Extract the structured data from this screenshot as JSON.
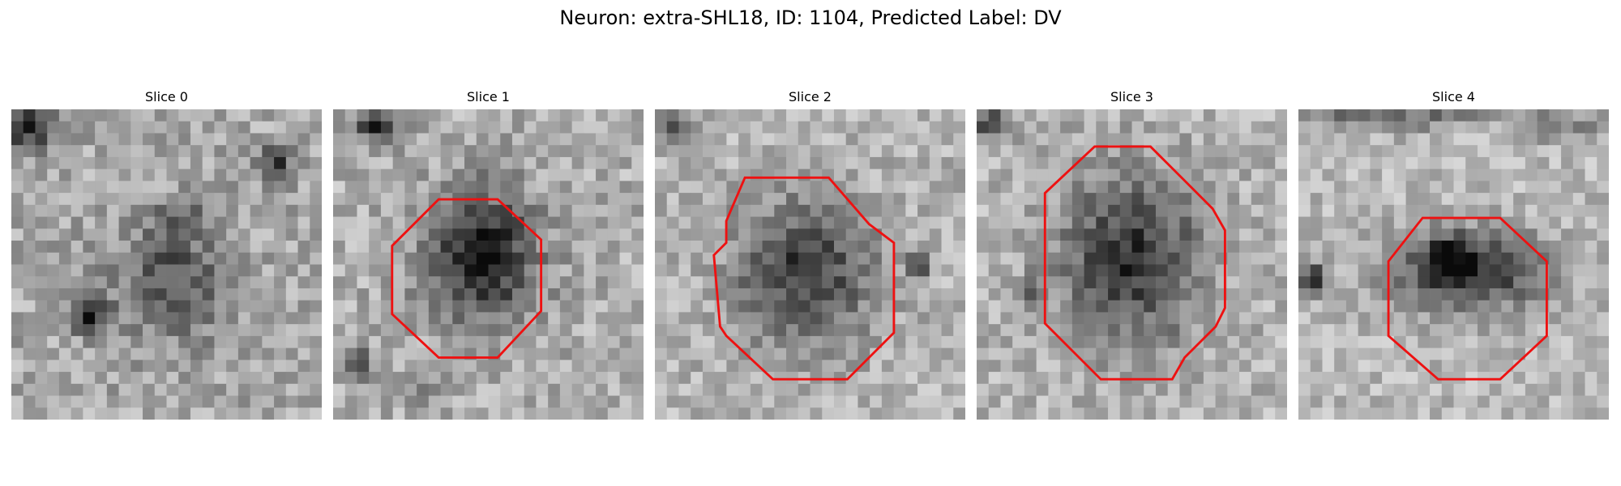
{
  "figure": {
    "title": "Neuron: extra-SHL18, ID: 1104, Predicted Label: DV"
  },
  "panels": [
    {
      "title": "Slice 0",
      "has_outline": false
    },
    {
      "title": "Slice 1",
      "has_outline": true
    },
    {
      "title": "Slice 2",
      "has_outline": true
    },
    {
      "title": "Slice 3",
      "has_outline": true
    },
    {
      "title": "Slice 4",
      "has_outline": true
    }
  ],
  "outline_color": "#ee1111"
}
